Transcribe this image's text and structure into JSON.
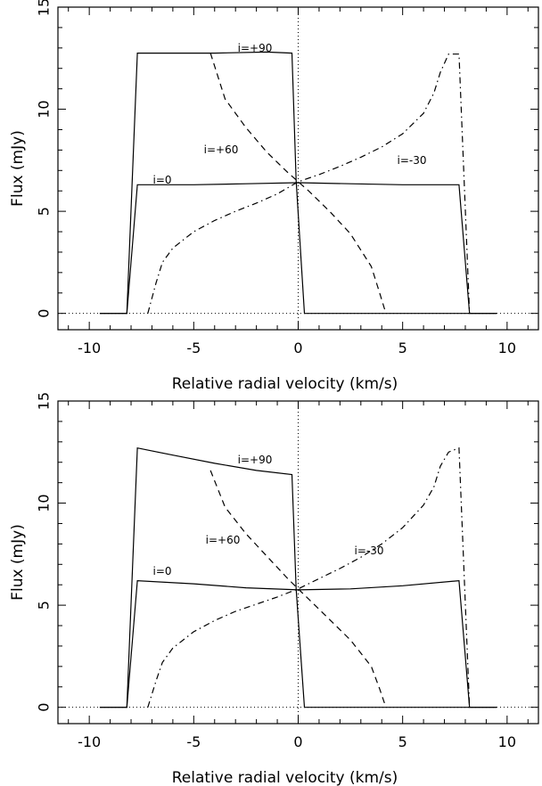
{
  "chart_data": [
    {
      "type": "line",
      "panel": "top",
      "xlabel": "Relative radial velocity (km/s)",
      "ylabel": "Flux (mJy)",
      "xlim": [
        -11.5,
        11.5
      ],
      "ylim": [
        -0.8,
        15
      ],
      "xticks": [
        -10,
        -5,
        0,
        5,
        10
      ],
      "yticks": [
        0,
        5,
        10,
        15
      ],
      "grid": false,
      "reference_lines": [
        {
          "orientation": "vertical",
          "value": 0,
          "style": "dotted"
        },
        {
          "orientation": "horizontal",
          "value": 0,
          "style": "dotted"
        }
      ],
      "series": [
        {
          "name": "i=+90",
          "style": "solid",
          "x": [
            -9.5,
            -8.2,
            -7.7,
            -4,
            -1.5,
            -0.3,
            -0.1,
            0.3,
            9.5
          ],
          "y": [
            0,
            0,
            12.75,
            12.75,
            12.8,
            12.75,
            6.5,
            0,
            0
          ]
        },
        {
          "name": "i=0",
          "style": "solid",
          "x": [
            -9.5,
            -8.2,
            -7.7,
            -5,
            -2.5,
            0,
            2.5,
            5,
            7.7,
            8.2,
            9.5
          ],
          "y": [
            0,
            0,
            6.3,
            6.3,
            6.35,
            6.4,
            6.35,
            6.3,
            6.3,
            0,
            0
          ]
        },
        {
          "name": "i=+60",
          "style": "dashed",
          "x": [
            -4.2,
            -3.5,
            -2.5,
            -1.5,
            -0.5,
            0,
            0.5,
            1.5,
            2.5,
            3.5,
            3.9,
            4.2
          ],
          "y": [
            12.75,
            10.5,
            9.1,
            7.9,
            6.9,
            6.45,
            6.0,
            5.0,
            3.9,
            2.3,
            1.0,
            0
          ]
        },
        {
          "name": "i=-30",
          "style": "dash-dot",
          "x": [
            -7.2,
            -6.8,
            -6.5,
            -6,
            -5,
            -4,
            -3,
            -2,
            -1,
            0,
            1,
            2,
            3,
            4,
            5,
            6,
            6.5,
            6.8,
            7.2,
            7.7,
            8.2
          ],
          "y": [
            0,
            1.5,
            2.5,
            3.2,
            4.0,
            4.55,
            5.0,
            5.4,
            5.85,
            6.45,
            6.8,
            7.2,
            7.65,
            8.15,
            8.8,
            9.8,
            10.8,
            11.8,
            12.7,
            12.7,
            0
          ]
        }
      ],
      "annotations": [
        "i=+90",
        "i=+60",
        "i=0",
        "i=-30"
      ]
    },
    {
      "type": "line",
      "panel": "bottom",
      "xlabel": "Relative radial velocity (km/s)",
      "ylabel": "Flux (mJy)",
      "xlim": [
        -11.5,
        11.5
      ],
      "ylim": [
        -0.8,
        15
      ],
      "xticks": [
        -10,
        -5,
        0,
        5,
        10
      ],
      "yticks": [
        0,
        5,
        10,
        15
      ],
      "grid": false,
      "reference_lines": [
        {
          "orientation": "vertical",
          "value": 0,
          "style": "dotted"
        },
        {
          "orientation": "horizontal",
          "value": 0,
          "style": "dotted"
        }
      ],
      "series": [
        {
          "name": "i=+90",
          "style": "solid",
          "x": [
            -9.5,
            -8.2,
            -7.7,
            -6,
            -4,
            -2,
            -0.3,
            -0.1,
            0.3,
            9.5
          ],
          "y": [
            0,
            0,
            12.7,
            12.35,
            11.95,
            11.6,
            11.4,
            5.8,
            0,
            0
          ]
        },
        {
          "name": "i=0",
          "style": "solid",
          "x": [
            -9.5,
            -8.2,
            -7.7,
            -5,
            -2.5,
            0,
            2.5,
            5,
            7.7,
            8.2,
            9.5
          ],
          "y": [
            0,
            0,
            6.2,
            6.05,
            5.85,
            5.75,
            5.8,
            5.95,
            6.2,
            0,
            0
          ]
        },
        {
          "name": "i=+60",
          "style": "dashed",
          "x": [
            -4.2,
            -3.5,
            -2.5,
            -1.5,
            -0.5,
            0,
            0.5,
            1.5,
            2.5,
            3.5,
            3.9,
            4.2
          ],
          "y": [
            11.6,
            9.8,
            8.5,
            7.4,
            6.3,
            5.8,
            5.3,
            4.3,
            3.3,
            2.0,
            0.9,
            0
          ]
        },
        {
          "name": "i=-30",
          "style": "dash-dot",
          "x": [
            -7.2,
            -6.8,
            -6.5,
            -6,
            -5,
            -4,
            -3,
            -2,
            -1,
            0,
            1,
            2,
            3,
            4,
            5,
            6,
            6.5,
            6.8,
            7.2,
            7.7,
            8.2
          ],
          "y": [
            0,
            1.3,
            2.2,
            2.9,
            3.7,
            4.25,
            4.7,
            5.05,
            5.4,
            5.8,
            6.3,
            6.8,
            7.35,
            8.0,
            8.8,
            9.9,
            10.8,
            11.8,
            12.5,
            12.7,
            0
          ]
        }
      ],
      "annotations": [
        "i=+90",
        "i=+60",
        "i=0",
        "i=-30"
      ]
    }
  ]
}
